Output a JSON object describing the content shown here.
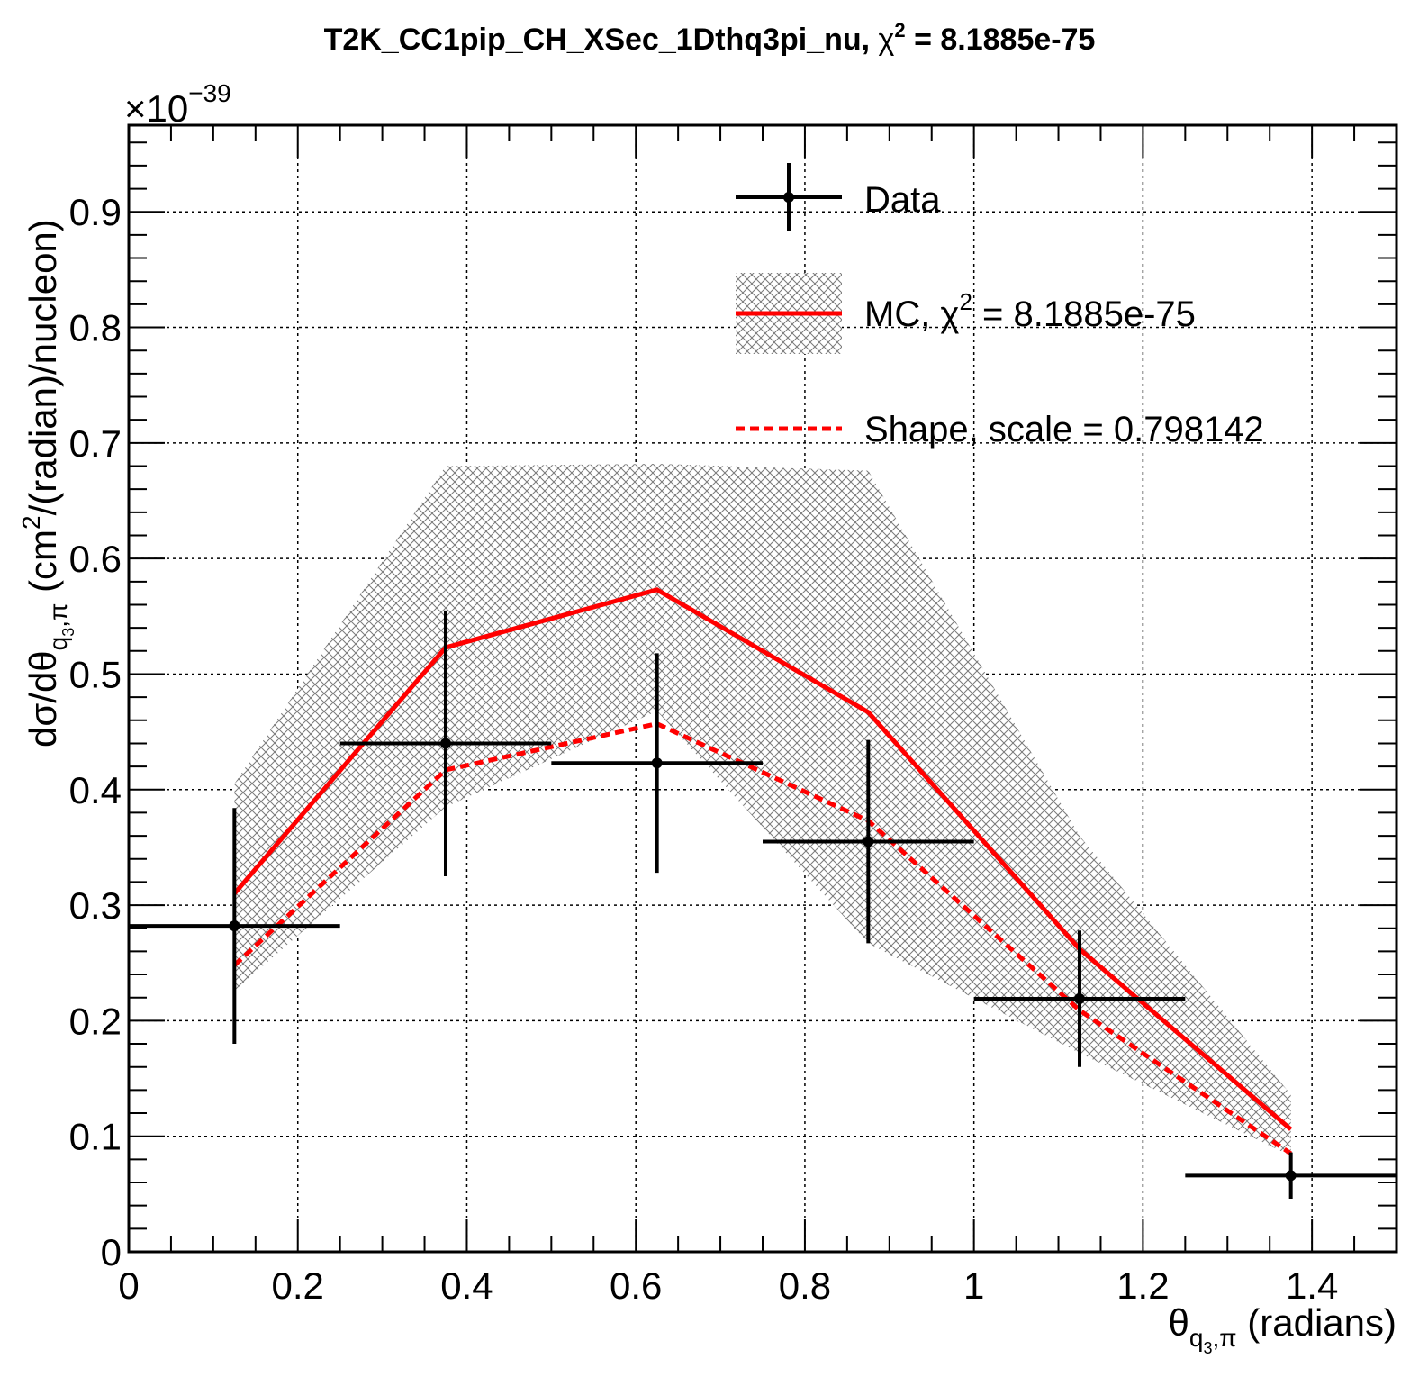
{
  "chart_data": {
    "type": "line",
    "title": "T2K_CC1pip_CH_XSec_1Dthq3pi_nu, χ² = 8.1885e-75",
    "title_parts": {
      "main": "T2K_CC1pip_CH_XSec_1Dthq3pi_nu, ",
      "chi": "χ",
      "sup": "2",
      "rest": " = 8.1885e-75"
    },
    "xlabel": {
      "main": "θ",
      "sub": "q",
      "subsub": "3",
      "tail": ",π",
      "unit": " (radians)"
    },
    "ylabel": {
      "pre": "dσ/dθ",
      "sub": "q",
      "subsub": "3",
      "tail": ",π",
      "mid": " (cm",
      "sup": "2",
      "post": "/(radian)/nucleon)"
    },
    "y_multiplier": {
      "base": "×10",
      "exp": "−39"
    },
    "xlim": [
      0,
      1.5
    ],
    "ylim": [
      0,
      0.975
    ],
    "x_ticks": [
      0,
      0.2,
      0.4,
      0.6,
      0.8,
      1,
      1.2,
      1.4
    ],
    "x_tick_labels": [
      "0",
      "0.2",
      "0.4",
      "0.6",
      "0.8",
      "1",
      "1.2",
      "1.4"
    ],
    "y_ticks": [
      0,
      0.1,
      0.2,
      0.3,
      0.4,
      0.5,
      0.6,
      0.7,
      0.8,
      0.9
    ],
    "y_tick_labels": [
      "0",
      "0.1",
      "0.2",
      "0.3",
      "0.4",
      "0.5",
      "0.6",
      "0.7",
      "0.8",
      "0.9"
    ],
    "grid": true,
    "legend_position": "top-right",
    "series": [
      {
        "name": "Data",
        "kind": "points-with-errors",
        "color": "#000000",
        "x": [
          0.125,
          0.375,
          0.625,
          0.875,
          1.125,
          1.375
        ],
        "xerr": [
          0.125,
          0.125,
          0.125,
          0.125,
          0.125,
          0.125
        ],
        "y": [
          0.282,
          0.44,
          0.423,
          0.355,
          0.219,
          0.066
        ],
        "yerr": [
          0.102,
          0.115,
          0.095,
          0.088,
          0.059,
          0.02
        ]
      },
      {
        "name": "MC, χ² = 8.1885e-75",
        "legend_parts": {
          "main": "MC, χ",
          "sup": "2",
          "rest": " = 8.1885e-75"
        },
        "kind": "line-with-band",
        "color": "#ff0000",
        "x": [
          0.125,
          0.375,
          0.625,
          0.875,
          1.125,
          1.375
        ],
        "y": [
          0.31,
          0.523,
          0.573,
          0.467,
          0.262,
          0.106
        ],
        "band_low": [
          0.226,
          0.385,
          0.468,
          0.267,
          0.172,
          0.083
        ],
        "band_high": [
          0.405,
          0.68,
          0.682,
          0.676,
          0.36,
          0.136
        ]
      },
      {
        "name": "Shape, scale = 0.798142",
        "kind": "dashed-line",
        "color": "#ff0000",
        "x": [
          0.125,
          0.375,
          0.625,
          0.875,
          1.125,
          1.375
        ],
        "y": [
          0.248,
          0.417,
          0.457,
          0.373,
          0.209,
          0.085
        ]
      }
    ]
  }
}
